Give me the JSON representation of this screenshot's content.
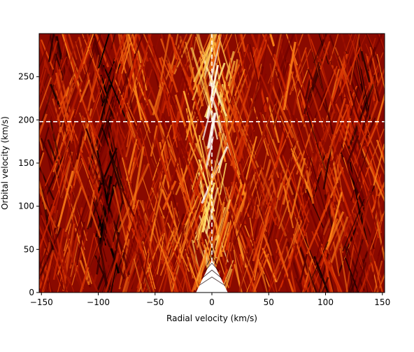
{
  "chart_data": {
    "type": "heatmap",
    "title": "",
    "xlabel": "Radial velocity (km/s)",
    "ylabel": "Orbital velocity (km/s)",
    "xlim": [
      -152,
      152
    ],
    "ylim": [
      0,
      300
    ],
    "xticks": [
      -150,
      -100,
      -50,
      0,
      50,
      100,
      150
    ],
    "yticks": [
      0,
      50,
      100,
      150,
      200,
      250
    ],
    "xtick_labels": [
      "−150",
      "−100",
      "−50",
      "0",
      "50",
      "100",
      "150"
    ],
    "ytick_labels": [
      "0",
      "50",
      "100",
      "150",
      "200",
      "250"
    ],
    "colormap": "afmhot",
    "colormap_stops": [
      "#000000",
      "#7a0000",
      "#d42a00",
      "#ff8c1a",
      "#ffe066",
      "#ffffff"
    ],
    "signal_peak": {
      "radial_velocity": 0,
      "orbital_velocity": 198
    },
    "dark_bands_radial_velocity": [
      -140,
      -95,
      -88,
      95,
      130
    ],
    "marker_lines": {
      "radial_velocity": 0,
      "orbital_velocity": 198,
      "color": "#ffffff",
      "style": "dashed"
    },
    "grid": false,
    "legend": "none"
  }
}
